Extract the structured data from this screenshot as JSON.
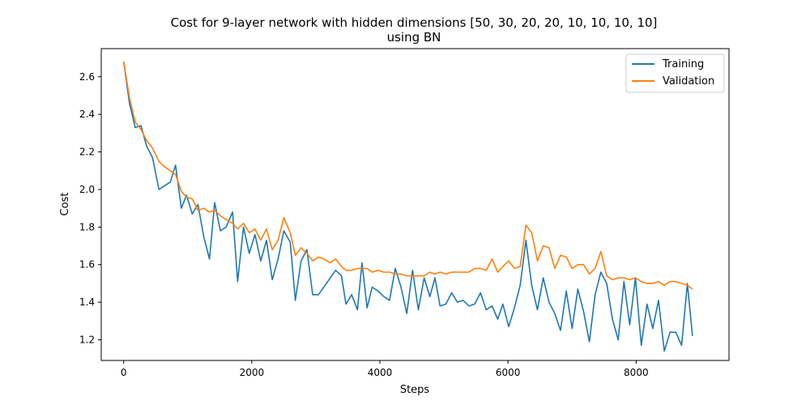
{
  "chart_data": {
    "type": "line",
    "title": "Cost for 9-layer network with hidden dimensions [50, 30, 20, 20, 10, 10, 10, 10]",
    "subtitle": "using BN",
    "xlabel": "Steps",
    "ylabel": "Cost",
    "xlim": [
      -350,
      9450
    ],
    "ylim": [
      1.09,
      2.75
    ],
    "xticks": [
      0,
      2000,
      4000,
      6000,
      8000
    ],
    "yticks": [
      1.2,
      1.4,
      1.6,
      1.8,
      2.0,
      2.2,
      2.4,
      2.6
    ],
    "grid": false,
    "legend_position": "top-right",
    "series": [
      {
        "name": "Training",
        "color": "#1f77b4",
        "points": [
          [
            0,
            2.68
          ],
          [
            90,
            2.46
          ],
          [
            180,
            2.33
          ],
          [
            270,
            2.34
          ],
          [
            360,
            2.23
          ],
          [
            450,
            2.17
          ],
          [
            550,
            2.0
          ],
          [
            640,
            2.02
          ],
          [
            730,
            2.04
          ],
          [
            810,
            2.13
          ],
          [
            900,
            1.9
          ],
          [
            980,
            1.97
          ],
          [
            1070,
            1.87
          ],
          [
            1160,
            1.92
          ],
          [
            1250,
            1.75
          ],
          [
            1340,
            1.63
          ],
          [
            1420,
            1.93
          ],
          [
            1510,
            1.78
          ],
          [
            1600,
            1.8
          ],
          [
            1700,
            1.88
          ],
          [
            1780,
            1.51
          ],
          [
            1870,
            1.8
          ],
          [
            1960,
            1.66
          ],
          [
            2050,
            1.76
          ],
          [
            2140,
            1.62
          ],
          [
            2230,
            1.73
          ],
          [
            2320,
            1.52
          ],
          [
            2410,
            1.63
          ],
          [
            2500,
            1.78
          ],
          [
            2600,
            1.72
          ],
          [
            2680,
            1.41
          ],
          [
            2770,
            1.62
          ],
          [
            2860,
            1.68
          ],
          [
            2950,
            1.44
          ],
          [
            3040,
            1.44
          ],
          [
            3310,
            1.57
          ],
          [
            3400,
            1.54
          ],
          [
            3470,
            1.39
          ],
          [
            3560,
            1.44
          ],
          [
            3650,
            1.36
          ],
          [
            3720,
            1.61
          ],
          [
            3800,
            1.37
          ],
          [
            3880,
            1.48
          ],
          [
            3970,
            1.46
          ],
          [
            4060,
            1.43
          ],
          [
            4150,
            1.41
          ],
          [
            4240,
            1.58
          ],
          [
            4330,
            1.48
          ],
          [
            4420,
            1.34
          ],
          [
            4510,
            1.57
          ],
          [
            4600,
            1.36
          ],
          [
            4690,
            1.53
          ],
          [
            4780,
            1.43
          ],
          [
            4860,
            1.53
          ],
          [
            4940,
            1.38
          ],
          [
            5030,
            1.39
          ],
          [
            5120,
            1.45
          ],
          [
            5210,
            1.4
          ],
          [
            5300,
            1.41
          ],
          [
            5390,
            1.38
          ],
          [
            5480,
            1.39
          ],
          [
            5570,
            1.45
          ],
          [
            5660,
            1.36
          ],
          [
            5750,
            1.38
          ],
          [
            5840,
            1.31
          ],
          [
            5920,
            1.39
          ],
          [
            6010,
            1.27
          ],
          [
            6100,
            1.37
          ],
          [
            6190,
            1.49
          ],
          [
            6280,
            1.73
          ],
          [
            6370,
            1.49
          ],
          [
            6460,
            1.36
          ],
          [
            6550,
            1.53
          ],
          [
            6640,
            1.4
          ],
          [
            6730,
            1.34
          ],
          [
            6820,
            1.25
          ],
          [
            6910,
            1.46
          ],
          [
            7000,
            1.26
          ],
          [
            7090,
            1.47
          ],
          [
            7180,
            1.35
          ],
          [
            7270,
            1.19
          ],
          [
            7360,
            1.44
          ],
          [
            7450,
            1.56
          ],
          [
            7540,
            1.5
          ],
          [
            7630,
            1.31
          ],
          [
            7720,
            1.2
          ],
          [
            7810,
            1.51
          ],
          [
            7900,
            1.28
          ],
          [
            7990,
            1.53
          ],
          [
            8080,
            1.17
          ],
          [
            8170,
            1.39
          ],
          [
            8260,
            1.26
          ],
          [
            8350,
            1.41
          ],
          [
            8440,
            1.14
          ],
          [
            8530,
            1.24
          ],
          [
            8620,
            1.24
          ],
          [
            8710,
            1.17
          ],
          [
            8800,
            1.5
          ],
          [
            8880,
            1.22
          ]
        ]
      },
      {
        "name": "Validation",
        "color": "#ff7f0e",
        "points": [
          [
            0,
            2.68
          ],
          [
            90,
            2.49
          ],
          [
            180,
            2.36
          ],
          [
            270,
            2.32
          ],
          [
            360,
            2.26
          ],
          [
            450,
            2.22
          ],
          [
            550,
            2.15
          ],
          [
            640,
            2.12
          ],
          [
            730,
            2.1
          ],
          [
            810,
            2.08
          ],
          [
            900,
            1.99
          ],
          [
            980,
            1.96
          ],
          [
            1070,
            1.95
          ],
          [
            1160,
            1.89
          ],
          [
            1250,
            1.9
          ],
          [
            1340,
            1.88
          ],
          [
            1420,
            1.89
          ],
          [
            1510,
            1.86
          ],
          [
            1600,
            1.84
          ],
          [
            1700,
            1.82
          ],
          [
            1780,
            1.79
          ],
          [
            1870,
            1.82
          ],
          [
            1960,
            1.77
          ],
          [
            2050,
            1.79
          ],
          [
            2140,
            1.73
          ],
          [
            2230,
            1.79
          ],
          [
            2320,
            1.68
          ],
          [
            2410,
            1.73
          ],
          [
            2500,
            1.85
          ],
          [
            2600,
            1.77
          ],
          [
            2680,
            1.65
          ],
          [
            2770,
            1.69
          ],
          [
            2860,
            1.66
          ],
          [
            2950,
            1.62
          ],
          [
            3040,
            1.64
          ],
          [
            3130,
            1.63
          ],
          [
            3220,
            1.61
          ],
          [
            3310,
            1.63
          ],
          [
            3400,
            1.59
          ],
          [
            3470,
            1.57
          ],
          [
            3560,
            1.57
          ],
          [
            3650,
            1.58
          ],
          [
            3720,
            1.58
          ],
          [
            3800,
            1.58
          ],
          [
            3880,
            1.56
          ],
          [
            3970,
            1.57
          ],
          [
            4060,
            1.56
          ],
          [
            4150,
            1.56
          ],
          [
            4240,
            1.55
          ],
          [
            4330,
            1.55
          ],
          [
            4420,
            1.54
          ],
          [
            4510,
            1.54
          ],
          [
            4600,
            1.54
          ],
          [
            4690,
            1.54
          ],
          [
            4780,
            1.56
          ],
          [
            4860,
            1.55
          ],
          [
            4940,
            1.56
          ],
          [
            5030,
            1.55
          ],
          [
            5120,
            1.56
          ],
          [
            5210,
            1.56
          ],
          [
            5300,
            1.56
          ],
          [
            5390,
            1.56
          ],
          [
            5480,
            1.58
          ],
          [
            5570,
            1.58
          ],
          [
            5660,
            1.57
          ],
          [
            5750,
            1.63
          ],
          [
            5840,
            1.56
          ],
          [
            5920,
            1.59
          ],
          [
            6010,
            1.62
          ],
          [
            6100,
            1.58
          ],
          [
            6190,
            1.59
          ],
          [
            6280,
            1.81
          ],
          [
            6370,
            1.77
          ],
          [
            6460,
            1.62
          ],
          [
            6550,
            1.7
          ],
          [
            6640,
            1.69
          ],
          [
            6730,
            1.58
          ],
          [
            6820,
            1.65
          ],
          [
            6910,
            1.64
          ],
          [
            7000,
            1.58
          ],
          [
            7090,
            1.6
          ],
          [
            7180,
            1.6
          ],
          [
            7270,
            1.55
          ],
          [
            7360,
            1.58
          ],
          [
            7450,
            1.67
          ],
          [
            7540,
            1.54
          ],
          [
            7630,
            1.52
          ],
          [
            7720,
            1.53
          ],
          [
            7810,
            1.53
          ],
          [
            7900,
            1.52
          ],
          [
            7990,
            1.53
          ],
          [
            8080,
            1.51
          ],
          [
            8170,
            1.5
          ],
          [
            8260,
            1.5
          ],
          [
            8350,
            1.51
          ],
          [
            8440,
            1.49
          ],
          [
            8530,
            1.51
          ],
          [
            8620,
            1.51
          ],
          [
            8710,
            1.5
          ],
          [
            8800,
            1.49
          ],
          [
            8880,
            1.47
          ]
        ]
      }
    ]
  }
}
